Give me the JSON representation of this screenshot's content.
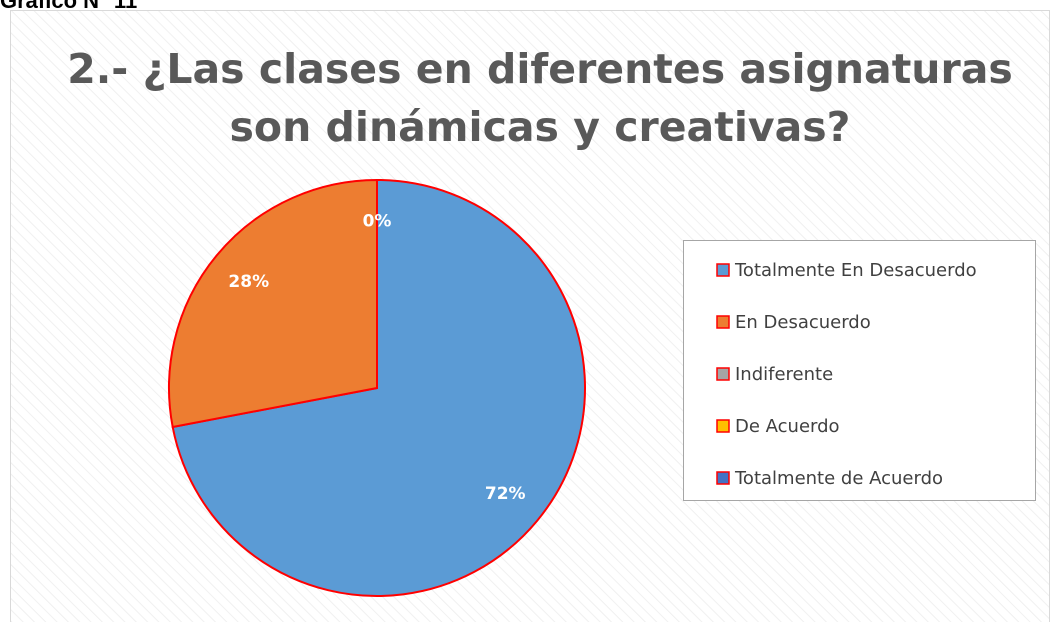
{
  "caption": "Gráfico N° 11",
  "chart_data": {
    "type": "pie",
    "title": [
      "2.- ¿Las clases en diferentes asignaturas",
      "son dinámicas y creativas?"
    ],
    "categories": [
      "Totalmente En Desacuerdo",
      "En Desacuerdo",
      "Indiferente",
      "De Acuerdo",
      "Totalmente de Acuerdo"
    ],
    "values": [
      72,
      28,
      0,
      0,
      0
    ],
    "value_labels": [
      "72%",
      "28%",
      "0%",
      null,
      null
    ],
    "colors": [
      "#5b9bd5",
      "#ed7d31",
      "#a5a5a5",
      "#ffc000",
      "#4472c4"
    ],
    "edge_color": "#ff0000",
    "legend": "right"
  }
}
